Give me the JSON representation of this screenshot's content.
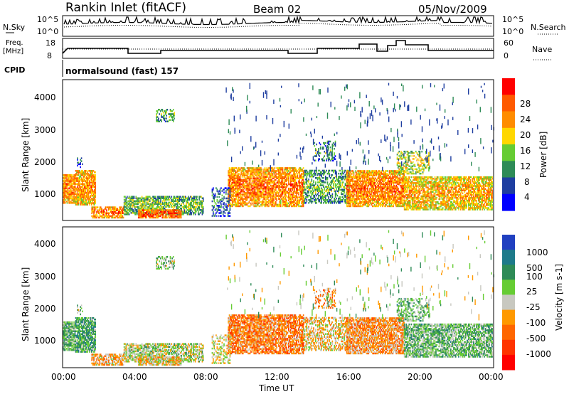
{
  "header": {
    "title": "Rankin Inlet (fitACF)",
    "beam": "Beam 02",
    "date": "05/Nov/2009"
  },
  "noise_panel": {
    "left_label": "N.Sky",
    "right_label": "N.Search",
    "left_ticks": [
      "10^5",
      "10^0"
    ],
    "right_ticks": [
      "10^5",
      "10^0"
    ]
  },
  "freq_panel": {
    "left_label_line1": "Freq.",
    "left_label_line2": "[MHz]",
    "right_label": "Nave",
    "left_ticks": [
      "18",
      "8"
    ],
    "right_ticks": [
      "60",
      "0"
    ]
  },
  "cpid": {
    "label": "CPID",
    "value": "normalsound (fast) 157"
  },
  "chart_data": [
    {
      "type": "heatmap",
      "name": "power",
      "ylabel": "Slant Range [km]",
      "yticks": [
        "4000",
        "3000",
        "2000",
        "1000"
      ],
      "ylim": [
        180,
        4500
      ],
      "colorbar_label": "Power [dB]",
      "colorbar_ticks": [
        "28",
        "24",
        "20",
        "16",
        "12",
        "8",
        "4"
      ],
      "colors": [
        "#0000ff",
        "#1e3ea0",
        "#2e8b57",
        "#66cc33",
        "#ffd700",
        "#ff8c00",
        "#ff5a00",
        "#ff0000"
      ]
    },
    {
      "type": "heatmap",
      "name": "velocity",
      "ylabel": "Slant Range [km]",
      "yticks": [
        "4000",
        "3000",
        "2000",
        "1000"
      ],
      "ylim": [
        180,
        4500
      ],
      "colorbar_label": "Velocity [m s-1]",
      "colorbar_ticks": [
        "1000",
        "500",
        "100",
        "25",
        "-25",
        "-100",
        "-500",
        "-1000"
      ],
      "colors": [
        "#2040c0",
        "#1e7a8a",
        "#2e8b57",
        "#66cc33",
        "#c8c8c0",
        "#ff9900",
        "#ff6600",
        "#ff3300",
        "#ff0000"
      ]
    }
  ],
  "x_axis": {
    "label": "Time UT",
    "ticks": [
      "00:00",
      "04:00",
      "08:00",
      "12:00",
      "16:00",
      "20:00",
      "00:00"
    ]
  }
}
